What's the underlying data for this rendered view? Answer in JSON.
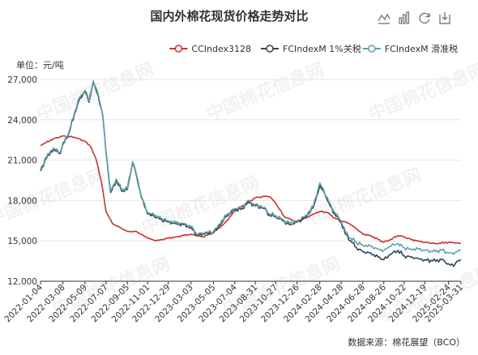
{
  "toolbar": {
    "icons": [
      "line-chart-icon",
      "bar-chart-icon",
      "restore-icon",
      "save-image-icon"
    ]
  },
  "watermark": {
    "text": "中国棉花信息网"
  },
  "chart_data": {
    "type": "line",
    "title": "国内外棉花现货价格走势对比",
    "unit_label": "单位：元/吨",
    "source": "数据来源：棉花展望（BCO）",
    "legend_position": "top-right",
    "grid": "horizontal",
    "ylim": [
      12000,
      27000
    ],
    "y_ticks": [
      "12,000",
      "15,000",
      "18,000",
      "21,000",
      "24,000",
      "27,000"
    ],
    "y_tick_values": [
      12000,
      15000,
      18000,
      21000,
      24000,
      27000
    ],
    "x_ticks": [
      "2022-01-04",
      "2022-03-08",
      "2022-05-09",
      "2022-07-07",
      "2022-09-05",
      "2022-11-01",
      "2022-12-29",
      "2023-03-03",
      "2023-05-05",
      "2023-07-04",
      "2023-08-31",
      "2023-10-27",
      "2023-12-26",
      "2024-02-28",
      "2024-04-28",
      "2024-06-28",
      "2024-08-26",
      "2024-10-22",
      "2024-12-19",
      "2025-02-24",
      "2025-03-31"
    ],
    "x_range": [
      "2022-01-04",
      "2025-03-31"
    ],
    "series": [
      {
        "name": "CCIndex3128",
        "color": "#c23531",
        "marker": "circle",
        "points": [
          [
            "2022-01-04",
            22100
          ],
          [
            "2022-02-10",
            22600
          ],
          [
            "2022-03-08",
            22800
          ],
          [
            "2022-04-10",
            22700
          ],
          [
            "2022-05-09",
            22400
          ],
          [
            "2022-05-25",
            22000
          ],
          [
            "2022-06-10",
            21000
          ],
          [
            "2022-06-25",
            19300
          ],
          [
            "2022-07-07",
            17200
          ],
          [
            "2022-07-25",
            16300
          ],
          [
            "2022-08-15",
            16000
          ],
          [
            "2022-09-05",
            15700
          ],
          [
            "2022-10-01",
            15700
          ],
          [
            "2022-11-01",
            15200
          ],
          [
            "2022-11-25",
            15000
          ],
          [
            "2022-12-29",
            15200
          ],
          [
            "2023-01-20",
            15300
          ],
          [
            "2023-02-10",
            15400
          ],
          [
            "2023-03-03",
            15500
          ],
          [
            "2023-04-05",
            15300
          ],
          [
            "2023-05-05",
            15600
          ],
          [
            "2023-06-05",
            16300
          ],
          [
            "2023-07-04",
            17200
          ],
          [
            "2023-07-25",
            17600
          ],
          [
            "2023-08-31",
            18200
          ],
          [
            "2023-09-25",
            18300
          ],
          [
            "2023-10-10",
            18300
          ],
          [
            "2023-10-27",
            17800
          ],
          [
            "2023-11-20",
            16800
          ],
          [
            "2023-12-26",
            16400
          ],
          [
            "2024-01-20",
            16700
          ],
          [
            "2024-02-10",
            17000
          ],
          [
            "2024-02-28",
            17200
          ],
          [
            "2024-03-20",
            17100
          ],
          [
            "2024-04-10",
            16700
          ],
          [
            "2024-04-28",
            16500
          ],
          [
            "2024-05-20",
            16300
          ],
          [
            "2024-06-10",
            15900
          ],
          [
            "2024-06-28",
            15500
          ],
          [
            "2024-07-20",
            15400
          ],
          [
            "2024-08-10",
            15100
          ],
          [
            "2024-08-26",
            14900
          ],
          [
            "2024-09-15",
            15100
          ],
          [
            "2024-10-05",
            15400
          ],
          [
            "2024-10-22",
            15300
          ],
          [
            "2024-11-10",
            15100
          ],
          [
            "2024-12-01",
            15000
          ],
          [
            "2024-12-19",
            14900
          ],
          [
            "2025-01-20",
            14800
          ],
          [
            "2025-02-24",
            14900
          ],
          [
            "2025-03-15",
            14850
          ],
          [
            "2025-03-31",
            14800
          ]
        ]
      },
      {
        "name": "FCIndexM 1%关税",
        "color": "#2f4554",
        "marker": "circle",
        "points": [
          [
            "2022-01-04",
            20200
          ],
          [
            "2022-01-25",
            21400
          ],
          [
            "2022-02-10",
            21800
          ],
          [
            "2022-03-01",
            21500
          ],
          [
            "2022-03-08",
            22200
          ],
          [
            "2022-03-25",
            23000
          ],
          [
            "2022-04-10",
            24500
          ],
          [
            "2022-04-25",
            25600
          ],
          [
            "2022-05-09",
            26100
          ],
          [
            "2022-05-20",
            25300
          ],
          [
            "2022-06-01",
            26800
          ],
          [
            "2022-06-15",
            25800
          ],
          [
            "2022-06-28",
            24300
          ],
          [
            "2022-07-07",
            21600
          ],
          [
            "2022-07-20",
            18600
          ],
          [
            "2022-08-05",
            19500
          ],
          [
            "2022-08-20",
            18700
          ],
          [
            "2022-09-05",
            18800
          ],
          [
            "2022-09-20",
            20800
          ],
          [
            "2022-10-01",
            19800
          ],
          [
            "2022-10-15",
            18200
          ],
          [
            "2022-11-01",
            17000
          ],
          [
            "2022-11-20",
            16800
          ],
          [
            "2022-12-10",
            16600
          ],
          [
            "2022-12-29",
            16400
          ],
          [
            "2023-01-20",
            16300
          ],
          [
            "2023-02-10",
            16200
          ],
          [
            "2023-03-03",
            16000
          ],
          [
            "2023-03-20",
            15400
          ],
          [
            "2023-04-10",
            15500
          ],
          [
            "2023-05-05",
            15600
          ],
          [
            "2023-05-25",
            16200
          ],
          [
            "2023-06-10",
            16800
          ],
          [
            "2023-07-04",
            17300
          ],
          [
            "2023-07-25",
            17400
          ],
          [
            "2023-08-10",
            17900
          ],
          [
            "2023-08-31",
            17600
          ],
          [
            "2023-09-25",
            17400
          ],
          [
            "2023-10-10",
            16900
          ],
          [
            "2023-10-27",
            16800
          ],
          [
            "2023-11-15",
            16500
          ],
          [
            "2023-12-05",
            16200
          ],
          [
            "2023-12-26",
            16400
          ],
          [
            "2024-01-20",
            16800
          ],
          [
            "2024-02-10",
            17500
          ],
          [
            "2024-02-28",
            19100
          ],
          [
            "2024-03-10",
            18700
          ],
          [
            "2024-03-25",
            17800
          ],
          [
            "2024-04-10",
            17000
          ],
          [
            "2024-04-28",
            16400
          ],
          [
            "2024-05-10",
            15500
          ],
          [
            "2024-05-25",
            15000
          ],
          [
            "2024-06-10",
            14500
          ],
          [
            "2024-06-28",
            14200
          ],
          [
            "2024-07-20",
            14100
          ],
          [
            "2024-08-10",
            13800
          ],
          [
            "2024-08-26",
            13600
          ],
          [
            "2024-09-15",
            14000
          ],
          [
            "2024-10-05",
            14300
          ],
          [
            "2024-10-22",
            13900
          ],
          [
            "2024-11-10",
            13800
          ],
          [
            "2024-12-01",
            13700
          ],
          [
            "2024-12-19",
            13600
          ],
          [
            "2025-01-10",
            13500
          ],
          [
            "2025-02-05",
            13600
          ],
          [
            "2025-02-24",
            13300
          ],
          [
            "2025-03-10",
            13100
          ],
          [
            "2025-03-20",
            13500
          ],
          [
            "2025-03-31",
            13600
          ]
        ]
      },
      {
        "name": "FCIndexM 滑准税",
        "color": "#61a0a8",
        "marker": "circle",
        "points": [
          [
            "2022-01-04",
            20300
          ],
          [
            "2022-01-25",
            21500
          ],
          [
            "2022-02-10",
            21900
          ],
          [
            "2022-03-01",
            21600
          ],
          [
            "2022-03-08",
            22300
          ],
          [
            "2022-03-25",
            23100
          ],
          [
            "2022-04-10",
            24600
          ],
          [
            "2022-04-25",
            25700
          ],
          [
            "2022-05-09",
            26200
          ],
          [
            "2022-05-20",
            25400
          ],
          [
            "2022-06-01",
            26900
          ],
          [
            "2022-06-15",
            25900
          ],
          [
            "2022-06-28",
            24400
          ],
          [
            "2022-07-07",
            21700
          ],
          [
            "2022-07-20",
            18700
          ],
          [
            "2022-08-05",
            19600
          ],
          [
            "2022-08-20",
            18800
          ],
          [
            "2022-09-05",
            18900
          ],
          [
            "2022-09-20",
            20900
          ],
          [
            "2022-10-01",
            19900
          ],
          [
            "2022-10-15",
            18300
          ],
          [
            "2022-11-01",
            17100
          ],
          [
            "2022-11-20",
            16900
          ],
          [
            "2022-12-10",
            16700
          ],
          [
            "2022-12-29",
            16500
          ],
          [
            "2023-01-20",
            16400
          ],
          [
            "2023-02-10",
            16300
          ],
          [
            "2023-03-03",
            16100
          ],
          [
            "2023-03-20",
            15500
          ],
          [
            "2023-04-10",
            15600
          ],
          [
            "2023-05-05",
            15700
          ],
          [
            "2023-05-25",
            16300
          ],
          [
            "2023-06-10",
            16900
          ],
          [
            "2023-07-04",
            17400
          ],
          [
            "2023-07-25",
            17500
          ],
          [
            "2023-08-10",
            18000
          ],
          [
            "2023-08-31",
            17700
          ],
          [
            "2023-09-25",
            17500
          ],
          [
            "2023-10-10",
            17000
          ],
          [
            "2023-10-27",
            16900
          ],
          [
            "2023-11-15",
            16600
          ],
          [
            "2023-12-05",
            16300
          ],
          [
            "2023-12-26",
            16500
          ],
          [
            "2024-01-20",
            16900
          ],
          [
            "2024-02-10",
            17600
          ],
          [
            "2024-02-28",
            19300
          ],
          [
            "2024-03-10",
            18800
          ],
          [
            "2024-03-25",
            17900
          ],
          [
            "2024-04-10",
            17100
          ],
          [
            "2024-04-28",
            16500
          ],
          [
            "2024-05-10",
            15700
          ],
          [
            "2024-05-25",
            15200
          ],
          [
            "2024-06-10",
            14900
          ],
          [
            "2024-06-28",
            14700
          ],
          [
            "2024-07-20",
            14600
          ],
          [
            "2024-08-10",
            14400
          ],
          [
            "2024-08-26",
            14300
          ],
          [
            "2024-09-15",
            14600
          ],
          [
            "2024-10-05",
            14800
          ],
          [
            "2024-10-22",
            14500
          ],
          [
            "2024-11-10",
            14400
          ],
          [
            "2024-12-01",
            14400
          ],
          [
            "2024-12-19",
            14300
          ],
          [
            "2025-01-10",
            14200
          ],
          [
            "2025-02-05",
            14300
          ],
          [
            "2025-02-24",
            14100
          ],
          [
            "2025-03-10",
            14000
          ],
          [
            "2025-03-20",
            14200
          ],
          [
            "2025-03-31",
            14300
          ]
        ]
      }
    ]
  }
}
